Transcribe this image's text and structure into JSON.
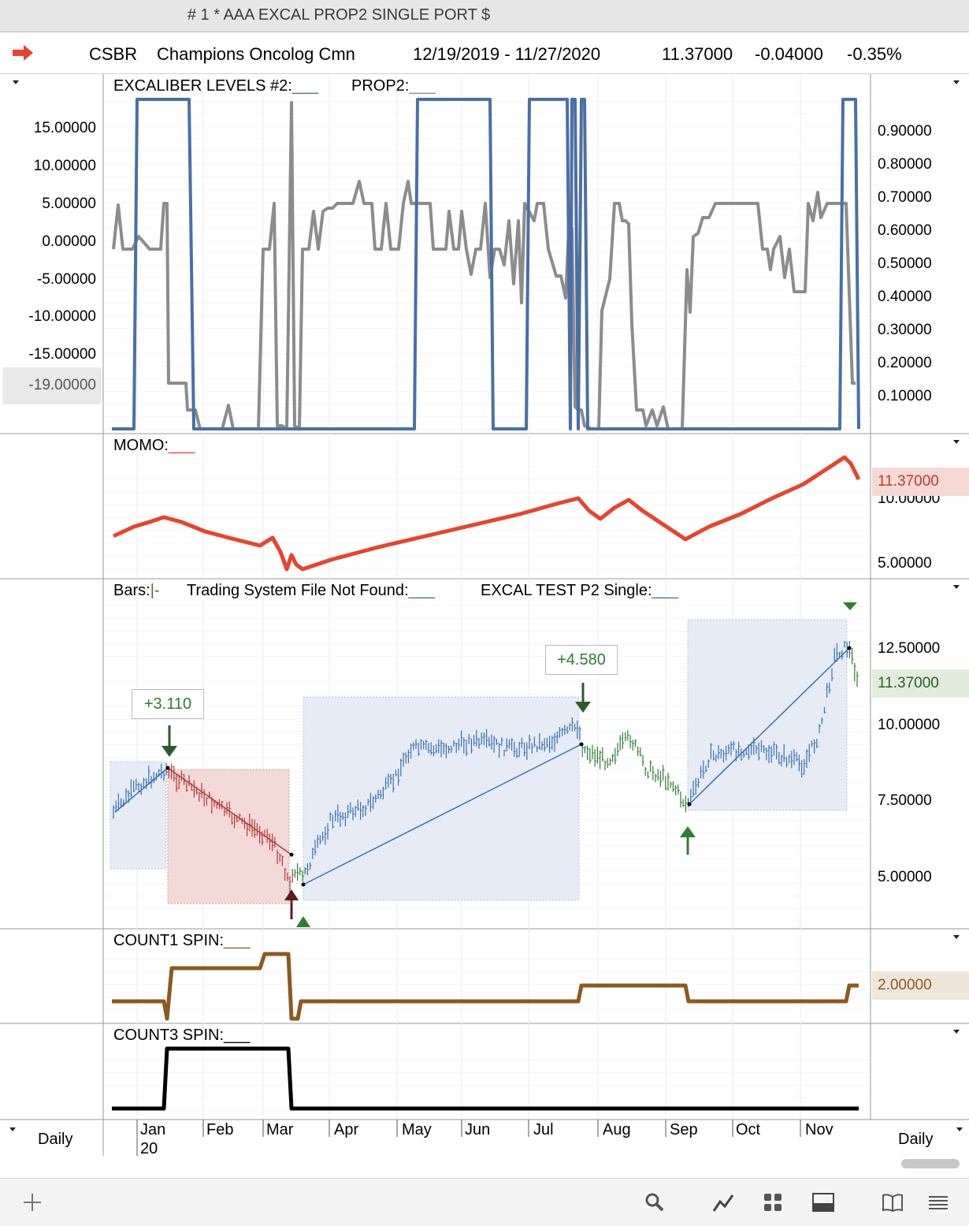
{
  "window": {
    "title": "# 1 * AAA EXCAL PROP2 SINGLE PORT $"
  },
  "header": {
    "icon": "red-right-arrow-icon",
    "symbol": "CSBR",
    "name": "Champions Oncolog Cmn",
    "date_range": "12/19/2019 - 11/27/2020",
    "last": "11.37000",
    "change": "-0.04000",
    "change_pct": "-0.35%"
  },
  "panels": {
    "excaliber": {
      "label1": "EXCALIBER LEVELS #2:",
      "label2": "PROP2:",
      "left_ticks": [
        "15.00000",
        "10.00000",
        "5.00000",
        "0.00000",
        "-5.00000",
        "-10.00000",
        "-15.00000"
      ],
      "left_highlight": "-19.00000",
      "right_ticks": [
        "0.90000",
        "0.80000",
        "0.70000",
        "0.60000",
        "0.50000",
        "0.40000",
        "0.30000",
        "0.20000",
        "0.10000"
      ]
    },
    "momo": {
      "label": "MOMO:",
      "value_tag": "11.37000",
      "right_ticks": [
        "10.00000",
        "5.00000"
      ]
    },
    "bars": {
      "label1": "Bars:",
      "label1_suffix": "|-",
      "label2": "Trading System File Not Found:",
      "label3": "EXCAL TEST P2 Single:",
      "value_tag": "11.37000",
      "right_ticks": [
        "12.50000",
        "10.00000",
        "7.50000",
        "5.00000"
      ],
      "trade_labels": [
        "+3.110",
        "+4.580"
      ]
    },
    "count1": {
      "label": "COUNT1 SPIN:",
      "value_tag": "2.00000"
    },
    "count3": {
      "label": "COUNT3 SPIN:"
    }
  },
  "xaxis": {
    "months": [
      "Jan",
      "Feb",
      "Mar",
      "Apr",
      "May",
      "Jun",
      "Jul",
      "Aug",
      "Sep",
      "Oct",
      "Nov"
    ],
    "year": "20",
    "period_left": "Daily",
    "period_right": "Daily"
  },
  "toolbar": {
    "icons": [
      "add-icon",
      "search-icon",
      "line-tool-icon",
      "grid-icon",
      "panel-icon",
      "book-icon",
      "menu-icon"
    ]
  },
  "colors": {
    "blue_line": "#4a6fa5",
    "gray_line": "#8c8c8c",
    "momo": "#e8432e",
    "count1": "#8b5a1e",
    "count3": "#000000",
    "up_arrow": "#2e7d32",
    "loss_box": "#f4d9d9",
    "win_box": "#e6ebf5"
  }
}
